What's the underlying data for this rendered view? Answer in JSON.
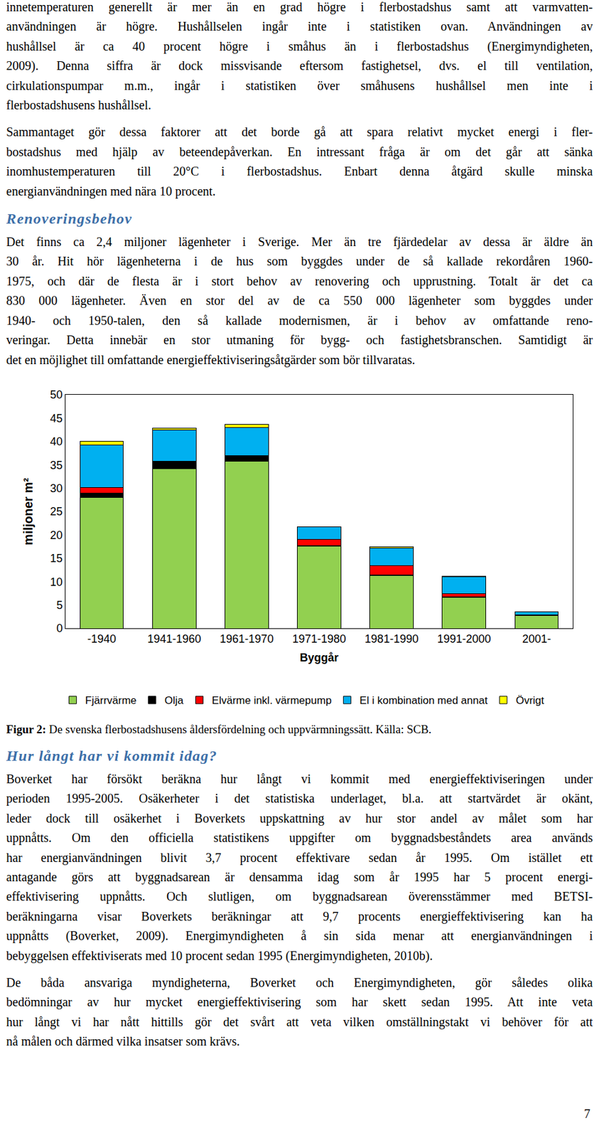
{
  "page": {
    "blocks": [
      {
        "type": "paragraph",
        "lines": [
          "innetemperaturen generellt är mer än en grad högre i flerbostadshus samt att varmvatten-",
          "användningen är högre. Hushållselen ingår inte i statistiken ovan. Användningen av",
          "hushållsel är ca 40 procent högre i småhus än i flerbostadshus (Energimyndigheten,",
          "2009). Denna siffra är dock missvisande eftersom fastighetsel, dvs. el till ventilation,",
          "cirkulationspumpar m.m., ingår i statistiken över småhusens hushållsel men inte i",
          "flerbostadshusens hushållsel."
        ]
      },
      {
        "type": "paragraph",
        "lines": [
          "Sammantaget gör dessa faktorer att det borde gå att spara relativt mycket energi i fler-",
          "bostadshus med hjälp av beteendepåverkan. En intressant fråga är om det går att sänka",
          "inomhustemperaturen till 20°C i flerbostadshus. Enbart denna åtgärd skulle minska",
          "energianvändningen med nära 10 procent."
        ]
      },
      {
        "type": "heading",
        "text": "Renoveringsbehov"
      },
      {
        "type": "paragraph",
        "lines": [
          "Det finns ca 2,4 miljoner lägenheter i Sverige. Mer än tre fjärdedelar av dessa är äldre än",
          "30 år. Hit hör lägenheterna i de hus som byggdes under de så kallade rekordåren 1960-",
          "1975, och där de flesta är i stort behov av renovering och upprustning. Totalt är det ca",
          "830 000 lägenheter. Även en stor del av de ca 550 000 lägenheter som byggdes under",
          "1940- och 1950-talen, den så kallade modernismen, är i behov av omfattande reno-",
          "veringar. Detta innebär en stor utmaning för bygg- och fastighetsbranschen. Samtidigt är",
          "det en möjlighet till omfattande energieffektiviseringsåtgärder som bör tillvaratas."
        ]
      },
      {
        "type": "figure"
      },
      {
        "type": "caption",
        "label": "Figur 2:",
        "text": "De svenska flerbostadshusens åldersfördelning och uppvärmningssätt. Källa: SCB."
      },
      {
        "type": "heading",
        "text": "Hur långt har vi kommit idag?"
      },
      {
        "type": "paragraph",
        "lines": [
          "Boverket har försökt beräkna hur långt vi kommit med energieffektiviseringen under",
          "perioden 1995-2005. Osäkerheter i det statistiska underlaget, bl.a. att startvärdet är okänt,",
          "leder dock till osäkerhet i Boverkets uppskattning av hur stor andel av målet som har",
          "uppnåtts. Om den officiella statistikens uppgifter om byggnadsbeståndets area används",
          "har energianvändningen blivit 3,7 procent effektivare sedan år 1995. Om istället ett",
          "antagande görs att byggnadsarean är densamma idag som år 1995 har 5 procent energi-",
          "effektivisering uppnåtts. Och slutligen, om byggnadsarean överensstämmer med BETSI-",
          "beräkningarna visar Boverkets beräkningar att 9,7 procents energieffektivisering kan ha",
          "uppnåtts (Boverket, 2009). Energimyndigheten å sin sida menar att energianvändningen i",
          "bebyggelsen effektiviserats med 10 procent sedan 1995 (Energimyndigheten, 2010b)."
        ]
      },
      {
        "type": "paragraph",
        "lines": [
          "De båda ansvariga myndigheterna, Boverket och Energimyndigheten, gör således olika",
          "bedömningar av hur mycket energieffektivisering som har skett sedan 1995. Att inte veta",
          "hur långt vi har nått hittills gör det svårt att veta vilken omställningstakt vi behöver för att",
          "nå målen och därmed vilka insatser som krävs."
        ]
      }
    ],
    "page_number": 7
  },
  "chart_data": {
    "type": "bar",
    "stacked": true,
    "grid": false,
    "legend": "bottom",
    "x_label": "Byggår",
    "y_label": "miljoner m²",
    "categories": [
      "-1940",
      "1941-1960",
      "1961-1970",
      "1971-1980",
      "1981-1990",
      "1991-2000",
      "2001-"
    ],
    "series": [
      {
        "name": "Fjärrvärme",
        "color": "#92d050",
        "values": [
          28.0,
          34.2,
          35.8,
          17.6,
          11.3,
          6.6,
          2.8
        ]
      },
      {
        "name": "Olja",
        "color": "#000000",
        "values": [
          1.0,
          1.6,
          1.1,
          0.1,
          0.1,
          0.1,
          0.1
        ]
      },
      {
        "name": "Elvärme inkl. värmepump",
        "color": "#ff0000",
        "values": [
          1.2,
          0.0,
          0.0,
          1.4,
          2.0,
          0.7,
          0.0
        ]
      },
      {
        "name": "El i kombination med annat",
        "color": "#00b0f0",
        "values": [
          9.1,
          6.7,
          6.1,
          2.6,
          3.8,
          3.6,
          0.6
        ]
      },
      {
        "name": "Övrigt",
        "color": "#ffff00",
        "values": [
          0.8,
          0.4,
          0.6,
          0.0,
          0.2,
          0.1,
          0.1
        ]
      }
    ],
    "ylim": [
      0,
      50
    ],
    "yticks": [
      0,
      5,
      10,
      15,
      20,
      25,
      30,
      35,
      40,
      45,
      50
    ]
  }
}
